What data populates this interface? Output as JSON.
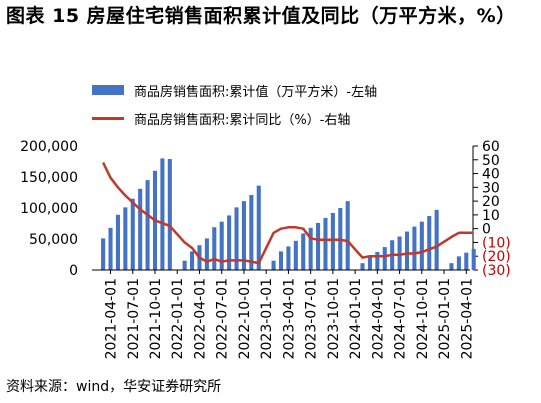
{
  "title": "图表 15 房屋住宅销售面积累计值及同比（万平方米，%）",
  "source": "资料来源：wind，华安证券研究所",
  "colors": {
    "bar": "#4472C4",
    "line": "#C0392B",
    "axis_right_neg": "#C00000"
  },
  "chart_data": {
    "type": "bar+line",
    "legend": [
      {
        "label": "商品房销售面积:累计值（万平方米）-左轴",
        "kind": "bar"
      },
      {
        "label": "商品房销售面积:累计同比（%）-右轴",
        "kind": "line"
      }
    ],
    "left_axis": {
      "min": 0,
      "max": 200000,
      "step": 50000,
      "ticks": [
        "0",
        "50,000",
        "100,000",
        "150,000",
        "200,000"
      ]
    },
    "right_axis": {
      "min": -30,
      "max": 60,
      "step": 10,
      "ticks": [
        "(30)",
        "(20)",
        "(10)",
        "0",
        "10",
        "20",
        "30",
        "40",
        "50",
        "60"
      ]
    },
    "x_tick_labels": [
      "2021-04-01",
      "2021-07-01",
      "2021-10-01",
      "2022-01-01",
      "2022-04-01",
      "2022-07-01",
      "2022-10-01",
      "2023-01-01",
      "2023-04-01",
      "2023-07-01",
      "2023-10-01",
      "2024-01-01",
      "2024-04-01",
      "2024-07-01",
      "2024-10-01",
      "2025-01-01",
      "2025-04-01"
    ],
    "months": [
      "2021-03",
      "2021-04",
      "2021-05",
      "2021-06",
      "2021-07",
      "2021-08",
      "2021-09",
      "2021-10",
      "2021-11",
      "2021-12",
      "2022-02",
      "2022-03",
      "2022-04",
      "2022-05",
      "2022-06",
      "2022-07",
      "2022-08",
      "2022-09",
      "2022-10",
      "2022-11",
      "2022-12",
      "2023-02",
      "2023-03",
      "2023-04",
      "2023-05",
      "2023-06",
      "2023-07",
      "2023-08",
      "2023-09",
      "2023-10",
      "2023-11",
      "2023-12",
      "2024-02",
      "2024-03",
      "2024-04",
      "2024-05",
      "2024-06",
      "2024-07",
      "2024-08",
      "2024-09",
      "2024-10",
      "2024-11",
      "2024-12",
      "2025-02",
      "2025-03",
      "2025-04",
      "2025-05"
    ],
    "series": [
      {
        "name": "商品房销售面积:累计值（万平方米）",
        "values": [
          51000,
          68000,
          89000,
          101000,
          115000,
          131000,
          145000,
          160000,
          180000,
          179000,
          15000,
          30000,
          40000,
          51000,
          69000,
          78000,
          88000,
          101000,
          111000,
          121000,
          136000,
          15000,
          30000,
          38000,
          47000,
          59000,
          68000,
          76000,
          84000,
          92000,
          100000,
          111000,
          11000,
          22000,
          29000,
          37000,
          48000,
          54000,
          62000,
          70000,
          78000,
          87000,
          97000,
          11000,
          22000,
          28000,
          34000
        ]
      },
      {
        "name": "商品房销售面积:累计同比（%）",
        "values": [
          48,
          37,
          30,
          24,
          19,
          14,
          10,
          6,
          4,
          2,
          -10,
          -14,
          -21,
          -24,
          -22,
          -24,
          -23,
          -23,
          -23,
          -24,
          -25,
          -3,
          0,
          1,
          1,
          0,
          -7,
          -8,
          -8,
          -8,
          -8,
          -9,
          -21,
          -20,
          -20,
          -20,
          -19,
          -19,
          -18,
          -18,
          -17,
          -15,
          -13,
          -6,
          -3,
          -3,
          -3
        ]
      }
    ]
  }
}
